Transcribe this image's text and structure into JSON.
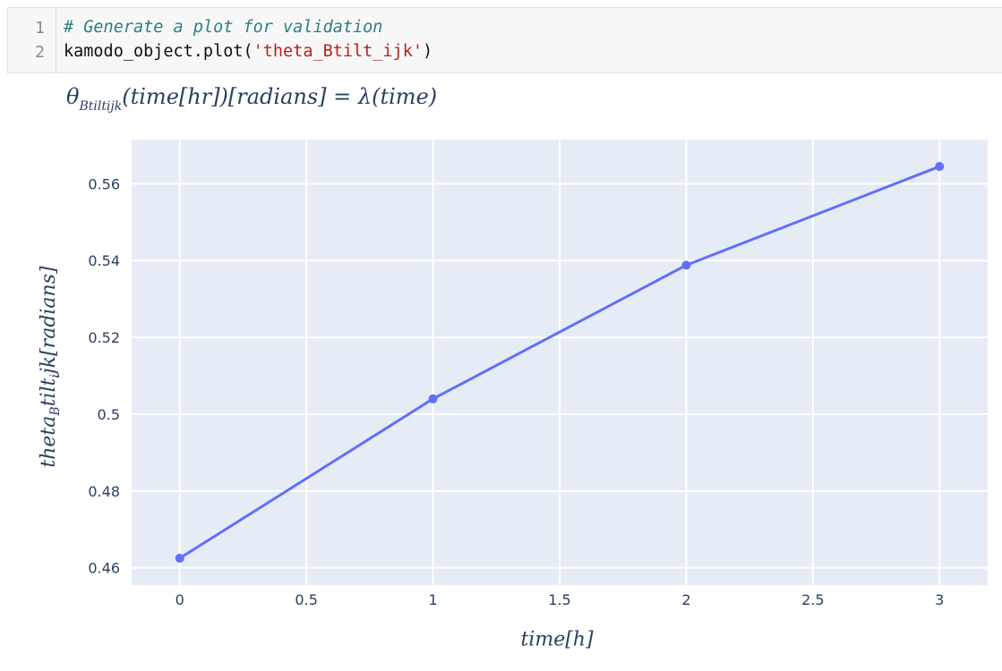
{
  "cell": {
    "line_numbers": [
      "1",
      "2"
    ],
    "code": {
      "comment": "# Generate a plot for validation",
      "call_prefix": "kamodo_object.plot(",
      "call_arg": "'theta_Btilt_ijk'",
      "call_suffix": ")"
    }
  },
  "plot": {
    "title_main": "θ",
    "title_sub": "Btiltijk",
    "title_rest": "(time[hr])[radians] = λ(time)",
    "ylabel_main": "theta",
    "ylabel_sub": "B",
    "ylabel_mid": "tilt",
    "ylabel_sub2": "i",
    "ylabel_rest": "jk[radians]",
    "xlabel": "time[h]"
  },
  "chart_data": {
    "type": "line",
    "x": [
      0,
      1,
      2,
      3
    ],
    "series": [
      {
        "values": [
          0.4625,
          0.504,
          0.5388,
          0.5645
        ],
        "color": "#636efa"
      }
    ],
    "xticks": [
      "0",
      "0.5",
      "1",
      "1.5",
      "2",
      "2.5",
      "3"
    ],
    "xtick_values": [
      0,
      0.5,
      1,
      1.5,
      2,
      2.5,
      3
    ],
    "yticks": [
      "0.46",
      "0.48",
      "0.5",
      "0.52",
      "0.54",
      "0.56"
    ],
    "ytick_values": [
      0.46,
      0.48,
      0.5,
      0.52,
      0.54,
      0.56
    ],
    "xlim": [
      -0.19,
      3.19
    ],
    "ylim": [
      0.4555,
      0.5715
    ],
    "grid": true,
    "plot_bgcolor": "#e5ecf6",
    "markers": true
  }
}
